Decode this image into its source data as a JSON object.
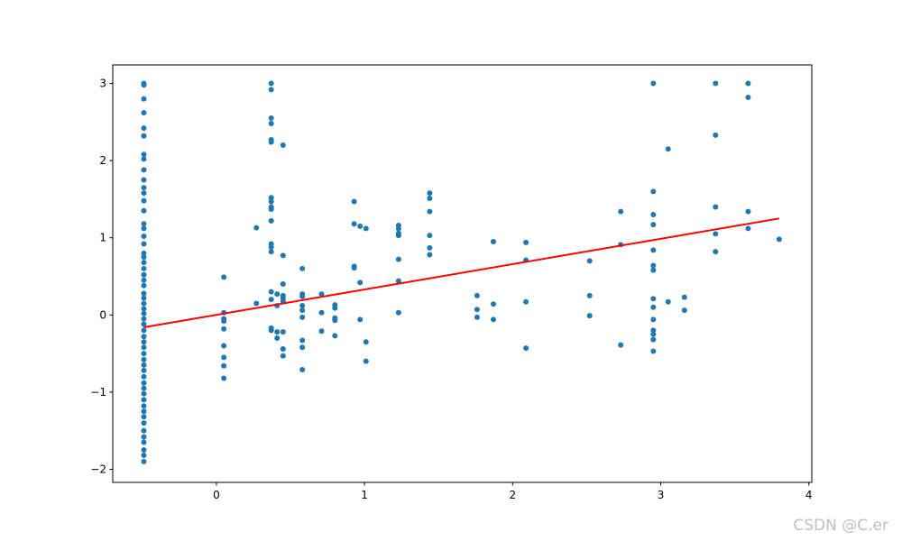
{
  "chart_data": {
    "type": "scatter",
    "xlim": [
      -0.7,
      4.02
    ],
    "ylim": [
      -2.17,
      3.24
    ],
    "xticks": [
      0,
      1,
      2,
      3,
      4
    ],
    "yticks": [
      {
        "value": -2,
        "label": "−2"
      },
      {
        "value": -1,
        "label": "−1"
      },
      0,
      1,
      2,
      3
    ],
    "grid": false,
    "series": [
      {
        "type": "scatter",
        "color": "#1f77b4",
        "x": [
          -0.49,
          -0.49,
          -0.49,
          -0.49,
          -0.49,
          -0.49,
          -0.49,
          -0.49,
          -0.49,
          -0.49,
          -0.49,
          -0.49,
          -0.49,
          -0.49,
          -0.49,
          -0.49,
          -0.49,
          -0.49,
          -0.49,
          -0.49,
          -0.49,
          -0.49,
          -0.49,
          -0.49,
          -0.49,
          -0.49,
          -0.49,
          -0.49,
          -0.49,
          -0.49,
          -0.49,
          -0.49,
          -0.49,
          -0.49,
          -0.49,
          -0.49,
          -0.49,
          -0.49,
          -0.49,
          -0.49,
          -0.49,
          -0.49,
          -0.49,
          -0.49,
          -0.49,
          -0.49,
          -0.49,
          -0.49,
          -0.49,
          -0.49,
          -0.49,
          -0.49,
          -0.49,
          -0.49,
          -0.49,
          0.05,
          0.05,
          0.05,
          0.05,
          0.05,
          0.05,
          0.05,
          0.05,
          0.05,
          0.27,
          0.27,
          0.37,
          0.37,
          0.37,
          0.37,
          0.37,
          0.37,
          0.37,
          0.37,
          0.37,
          0.37,
          0.37,
          0.37,
          0.37,
          0.37,
          0.37,
          0.37,
          0.37,
          0.37,
          0.41,
          0.41,
          0.41,
          0.41,
          0.45,
          0.45,
          0.45,
          0.45,
          0.45,
          0.45,
          0.45,
          0.45,
          0.45,
          0.58,
          0.58,
          0.58,
          0.58,
          0.58,
          0.58,
          0.58,
          0.58,
          0.58,
          0.71,
          0.71,
          0.71,
          0.8,
          0.8,
          0.8,
          0.8,
          0.8,
          0.93,
          0.93,
          0.93,
          0.93,
          0.97,
          0.97,
          0.97,
          1.01,
          1.01,
          1.01,
          1.23,
          1.23,
          1.23,
          1.23,
          1.23,
          1.23,
          1.23,
          1.44,
          1.44,
          1.44,
          1.44,
          1.44,
          1.44,
          1.76,
          1.76,
          1.76,
          1.87,
          1.87,
          1.87,
          2.09,
          2.09,
          2.09,
          2.09,
          2.52,
          2.52,
          2.52,
          2.73,
          2.73,
          2.73,
          2.95,
          2.95,
          2.95,
          2.95,
          2.95,
          2.95,
          2.95,
          2.95,
          2.95,
          2.95,
          2.95,
          2.95,
          2.95,
          2.95,
          3.05,
          3.05,
          3.16,
          3.16,
          3.37,
          3.37,
          3.37,
          3.37,
          3.37,
          3.59,
          3.59,
          3.59,
          3.59,
          3.8
        ],
        "y": [
          3.0,
          2.98,
          2.8,
          2.62,
          2.42,
          2.32,
          2.08,
          2.02,
          1.88,
          1.75,
          1.65,
          1.58,
          1.48,
          1.35,
          1.18,
          1.12,
          1.02,
          0.92,
          0.8,
          0.75,
          0.68,
          0.6,
          0.52,
          0.45,
          0.38,
          0.28,
          0.22,
          0.15,
          0.08,
          0.02,
          -0.05,
          -0.12,
          -0.2,
          -0.28,
          -0.35,
          -0.42,
          -0.5,
          -0.58,
          -0.65,
          -0.72,
          -0.8,
          -0.88,
          -0.95,
          -1.02,
          -1.1,
          -1.18,
          -1.25,
          -1.32,
          -1.4,
          -1.5,
          -1.58,
          -1.65,
          -1.75,
          -1.82,
          -1.9,
          0.49,
          0.03,
          -0.05,
          -0.08,
          -0.18,
          -0.4,
          -0.55,
          -0.66,
          -0.82,
          1.13,
          0.15,
          3.0,
          2.92,
          2.55,
          2.48,
          2.27,
          2.24,
          1.52,
          1.47,
          1.4,
          1.37,
          1.22,
          0.92,
          0.88,
          0.82,
          0.3,
          0.2,
          -0.17,
          -0.2,
          0.27,
          0.12,
          -0.22,
          -0.3,
          2.2,
          0.77,
          0.4,
          0.25,
          0.22,
          0.18,
          -0.22,
          -0.44,
          -0.53,
          0.6,
          0.27,
          0.24,
          0.12,
          0.06,
          -0.03,
          -0.33,
          -0.42,
          -0.71,
          0.27,
          0.03,
          -0.21,
          0.13,
          0.09,
          -0.04,
          -0.07,
          -0.27,
          1.47,
          1.18,
          0.63,
          0.61,
          1.15,
          0.42,
          -0.06,
          1.12,
          -0.35,
          -0.6,
          1.16,
          1.12,
          1.06,
          1.03,
          0.72,
          0.44,
          0.03,
          1.58,
          1.51,
          1.34,
          1.03,
          0.87,
          0.78,
          0.25,
          0.07,
          -0.03,
          0.95,
          0.14,
          -0.06,
          0.94,
          0.71,
          0.17,
          -0.43,
          0.7,
          0.25,
          -0.01,
          1.34,
          0.91,
          -0.39,
          3.0,
          1.6,
          1.3,
          1.17,
          0.84,
          0.64,
          0.58,
          0.21,
          0.1,
          -0.06,
          -0.2,
          -0.25,
          -0.32,
          -0.47,
          2.15,
          0.17,
          0.23,
          0.06,
          3.0,
          2.33,
          1.4,
          1.05,
          0.82,
          3.0,
          2.82,
          1.34,
          1.12,
          0.98
        ]
      },
      {
        "type": "line",
        "color": "#ff0000",
        "x": [
          -0.49,
          3.8
        ],
        "y": [
          -0.16,
          1.25
        ]
      }
    ]
  },
  "watermark": "CSDN @C.er"
}
